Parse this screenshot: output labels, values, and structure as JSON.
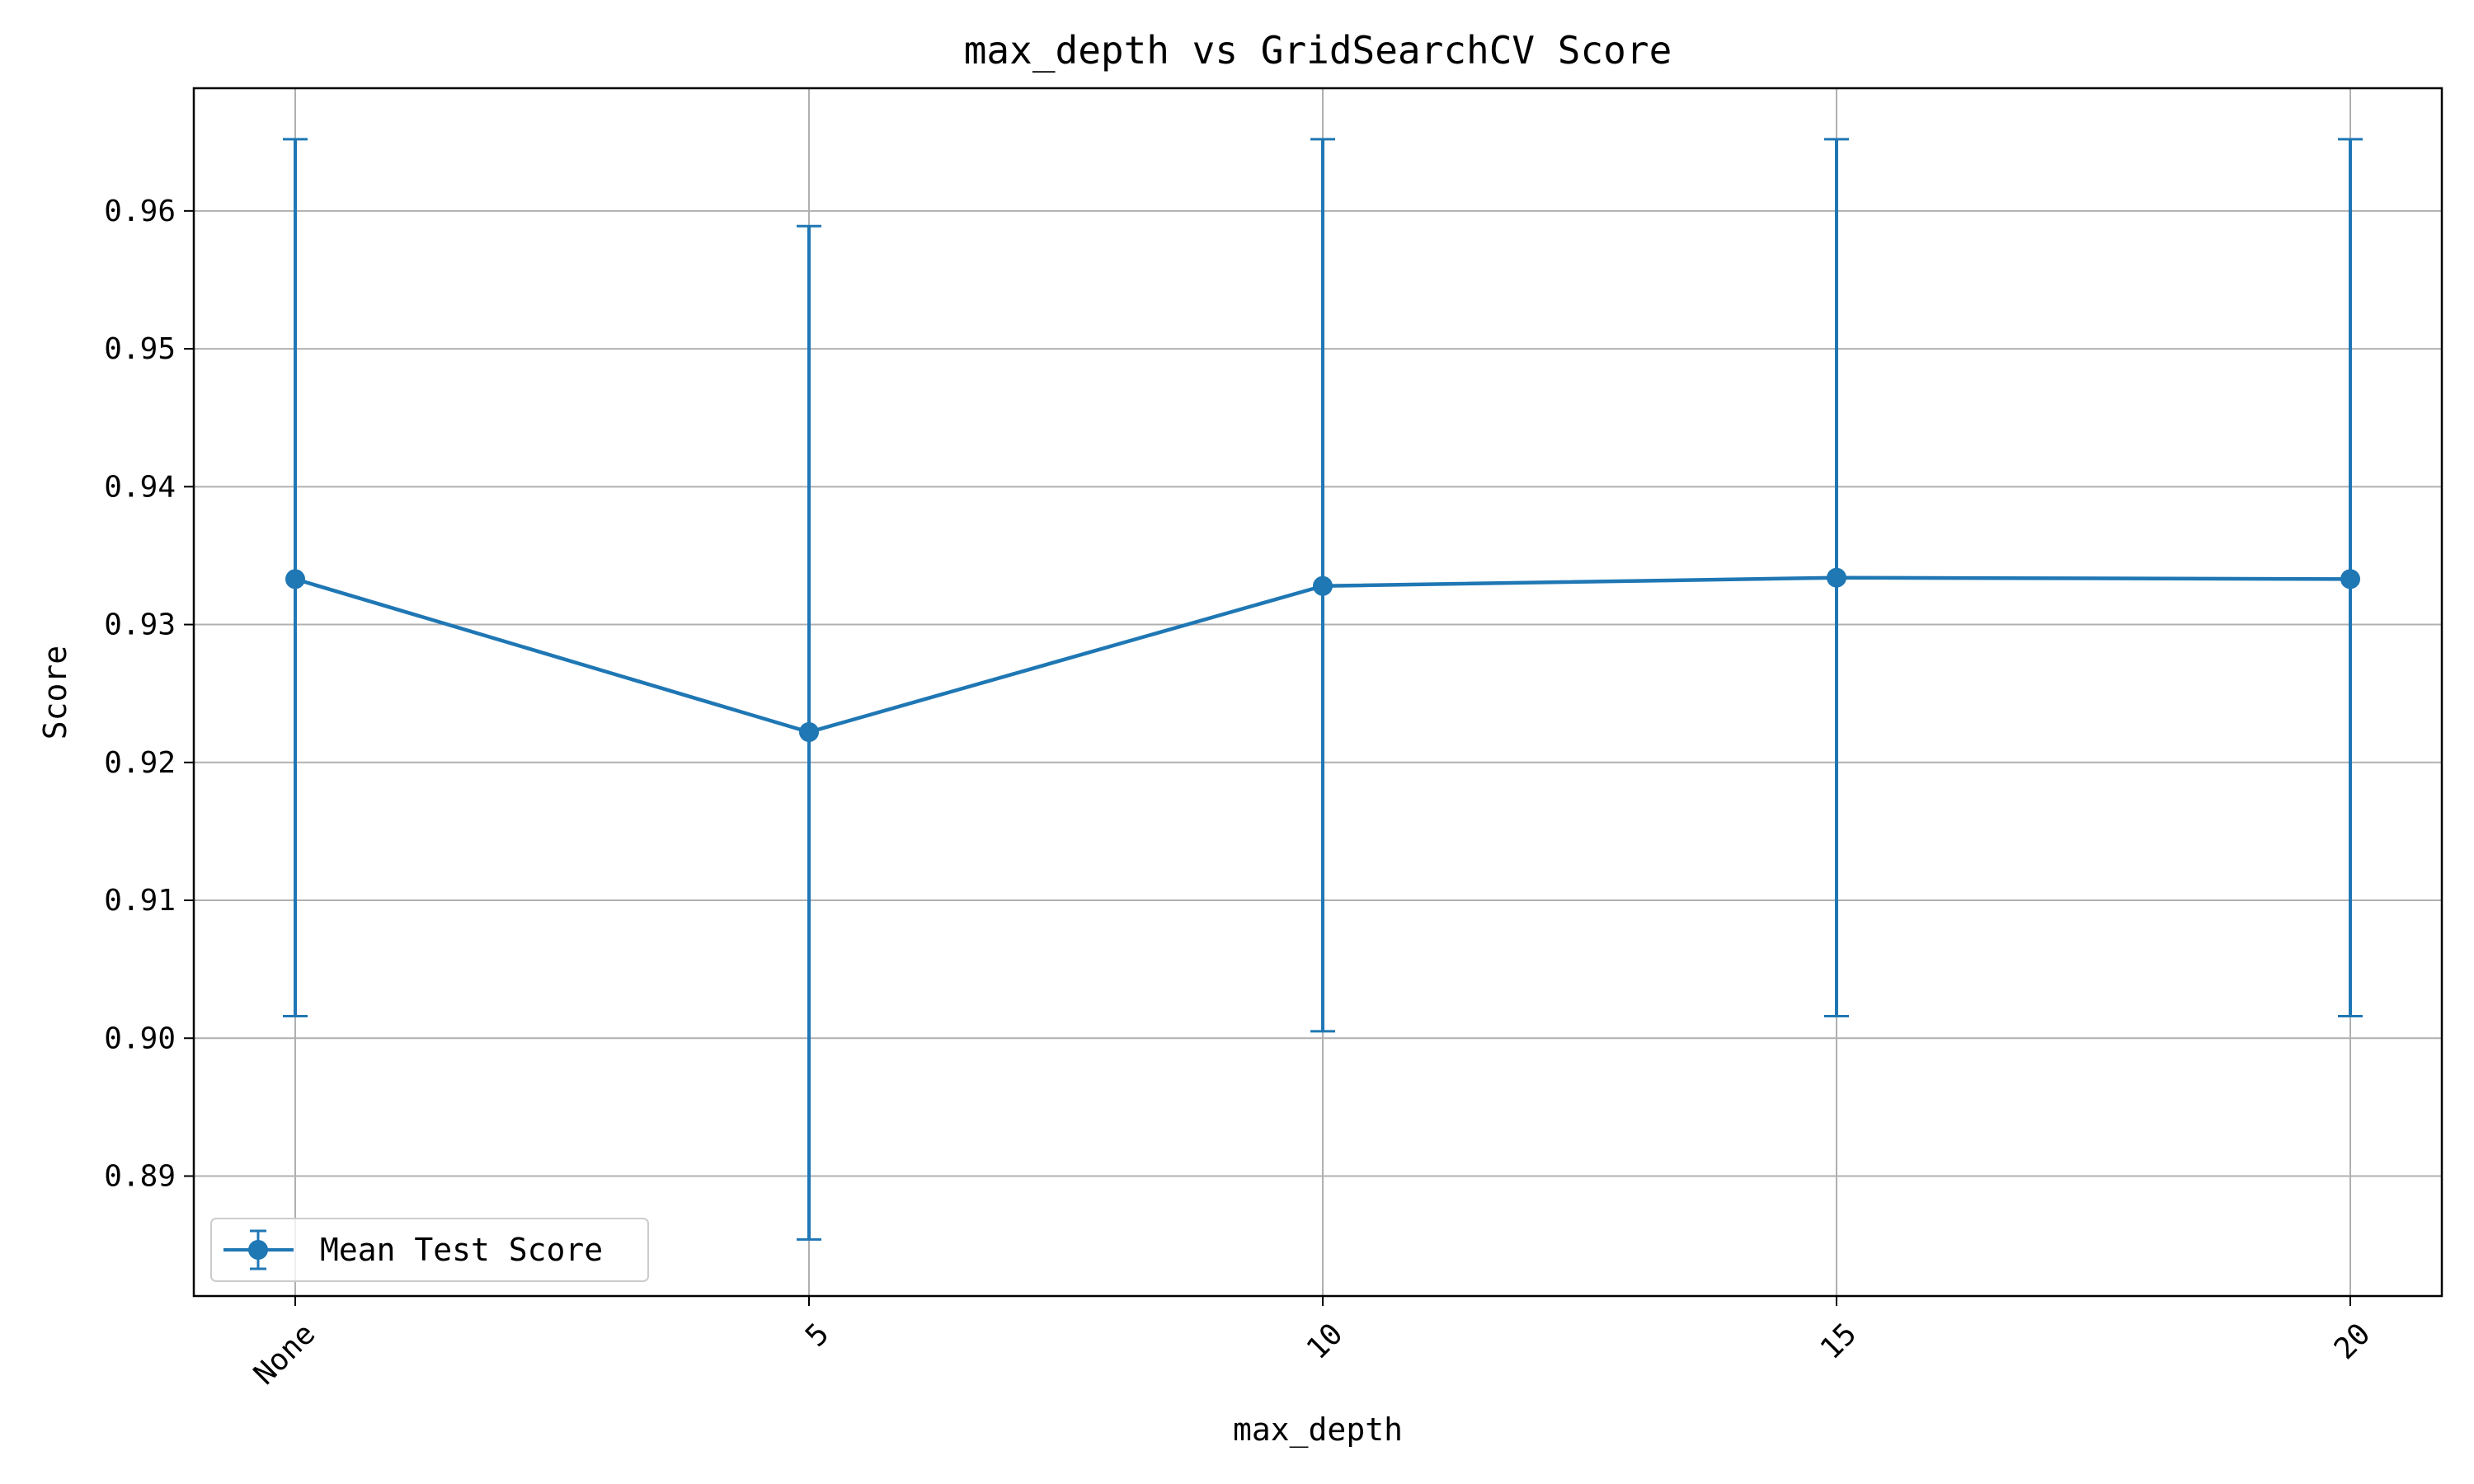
{
  "chart_data": {
    "type": "line",
    "title": "max_depth vs GridSearchCV Score",
    "xlabel": "max_depth",
    "ylabel": "Score",
    "categories": [
      "None",
      "5",
      "10",
      "15",
      "20"
    ],
    "series": [
      {
        "name": "Mean Test Score",
        "values": [
          0.9333,
          0.9222,
          0.9328,
          0.9334,
          0.9333
        ],
        "error_lower": [
          0.9016,
          0.8854,
          0.9005,
          0.9016,
          0.9016
        ],
        "error_upper": [
          0.9652,
          0.9589,
          0.9652,
          0.9652,
          0.9652
        ],
        "color": "#1f77b4",
        "marker": "circle"
      }
    ],
    "ylim": [
      0.8813,
      0.9689
    ],
    "yticks": [
      "0.89",
      "0.90",
      "0.91",
      "0.92",
      "0.93",
      "0.94",
      "0.95",
      "0.96"
    ],
    "grid": true,
    "legend_position": "lower-left",
    "xtick_rotation": 45
  }
}
